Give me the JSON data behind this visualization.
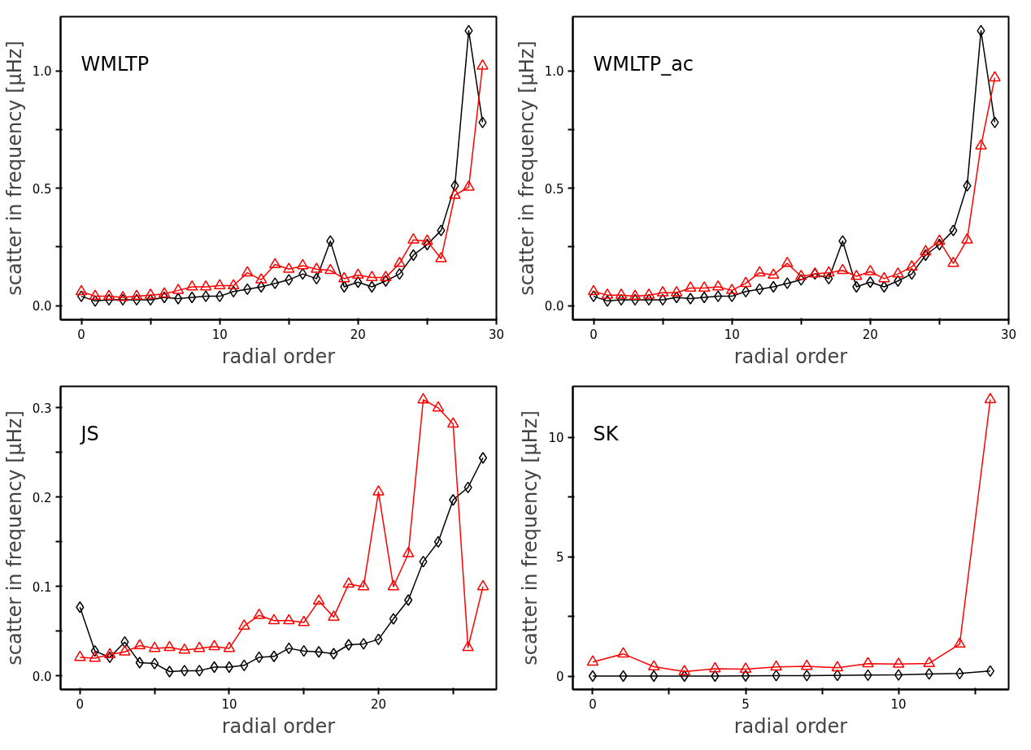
{
  "chart_data": [
    {
      "type": "line",
      "xlabel": "radial order",
      "ylabel": "scatter in frequency [μHz]",
      "annotations": [
        "WMLTP"
      ],
      "xlim": [
        -1.5,
        30
      ],
      "ylim": [
        -0.06,
        1.23
      ],
      "xticks": [
        0,
        {
          "value": 5,
          "label": null
        },
        10,
        {
          "value": 15,
          "label": null
        },
        20,
        {
          "value": 25,
          "label": null
        },
        30
      ],
      "yticks": [
        {
          "value": 0,
          "label": "0.0"
        },
        {
          "value": 0.25,
          "label": null
        },
        0.5,
        {
          "value": 0.75,
          "label": null
        },
        {
          "value": 1.0,
          "label": "1.0"
        }
      ],
      "x": [
        0,
        1,
        2,
        3,
        4,
        5,
        6,
        7,
        8,
        9,
        10,
        11,
        12,
        13,
        14,
        15,
        16,
        17,
        18,
        19,
        20,
        21,
        22,
        23,
        24,
        25,
        26,
        27,
        28,
        29
      ],
      "series": [
        {
          "color": "#000000",
          "marker": "diamond",
          "values": [
            0.04,
            0.02,
            0.025,
            0.025,
            0.025,
            0.025,
            0.035,
            0.03,
            0.035,
            0.04,
            0.04,
            0.06,
            0.07,
            0.08,
            0.095,
            0.11,
            0.135,
            0.115,
            0.275,
            0.08,
            0.1,
            0.08,
            0.105,
            0.135,
            0.215,
            0.26,
            0.32,
            0.51,
            1.17,
            0.78
          ]
        },
        {
          "color": "#ff0000",
          "marker": "triangle",
          "values": [
            0.06,
            0.04,
            0.04,
            0.035,
            0.04,
            0.045,
            0.05,
            0.065,
            0.08,
            0.08,
            0.085,
            0.085,
            0.14,
            0.11,
            0.175,
            0.155,
            0.17,
            0.155,
            0.15,
            0.115,
            0.13,
            0.12,
            0.12,
            0.18,
            0.28,
            0.275,
            0.2,
            0.47,
            0.505,
            1.02
          ]
        }
      ]
    },
    {
      "type": "line",
      "xlabel": "radial order",
      "ylabel": "scatter in frequency [μHz]",
      "annotations": [
        "WMLTP_ac"
      ],
      "xlim": [
        -1.5,
        30
      ],
      "ylim": [
        -0.06,
        1.23
      ],
      "xticks": [
        0,
        {
          "value": 5,
          "label": null
        },
        10,
        {
          "value": 15,
          "label": null
        },
        20,
        {
          "value": 25,
          "label": null
        },
        30
      ],
      "yticks": [
        {
          "value": 0,
          "label": "0.0"
        },
        {
          "value": 0.25,
          "label": null
        },
        0.5,
        {
          "value": 0.75,
          "label": null
        },
        {
          "value": 1.0,
          "label": "1.0"
        }
      ],
      "x": [
        0,
        1,
        2,
        3,
        4,
        5,
        6,
        7,
        8,
        9,
        10,
        11,
        12,
        13,
        14,
        15,
        16,
        17,
        18,
        19,
        20,
        21,
        22,
        23,
        24,
        25,
        26,
        27,
        28,
        29
      ],
      "series": [
        {
          "color": "#000000",
          "marker": "diamond",
          "values": [
            0.04,
            0.02,
            0.025,
            0.025,
            0.025,
            0.025,
            0.035,
            0.03,
            0.035,
            0.04,
            0.04,
            0.06,
            0.07,
            0.08,
            0.095,
            0.11,
            0.135,
            0.115,
            0.275,
            0.08,
            0.1,
            0.08,
            0.105,
            0.135,
            0.215,
            0.26,
            0.32,
            0.51,
            1.17,
            0.78
          ]
        },
        {
          "color": "#ff0000",
          "marker": "triangle",
          "values": [
            0.06,
            0.045,
            0.045,
            0.04,
            0.045,
            0.055,
            0.055,
            0.075,
            0.075,
            0.08,
            0.065,
            0.095,
            0.14,
            0.13,
            0.18,
            0.125,
            0.135,
            0.14,
            0.15,
            0.125,
            0.145,
            0.115,
            0.135,
            0.165,
            0.23,
            0.275,
            0.18,
            0.28,
            0.68,
            0.97
          ]
        }
      ]
    },
    {
      "type": "line",
      "xlabel": "radial order",
      "ylabel": "scatter in frequency [μHz]",
      "annotations": [
        "JS"
      ],
      "xlim": [
        -1.3,
        27.9
      ],
      "ylim": [
        -0.015,
        0.324
      ],
      "xticks": [
        0,
        {
          "value": 5,
          "label": null
        },
        10,
        {
          "value": 15,
          "label": null
        },
        20,
        {
          "value": 25,
          "label": null
        }
      ],
      "yticks": [
        {
          "value": 0,
          "label": "0.0"
        },
        {
          "value": 0.05,
          "label": null
        },
        0.1,
        {
          "value": 0.15,
          "label": null
        },
        0.2,
        {
          "value": 0.25,
          "label": null
        },
        0.3
      ],
      "x": [
        0,
        1,
        2,
        3,
        4,
        5,
        6,
        7,
        8,
        9,
        10,
        11,
        12,
        13,
        14,
        15,
        16,
        17,
        18,
        19,
        20,
        21,
        22,
        23,
        24,
        25,
        26,
        27
      ],
      "series": [
        {
          "color": "#000000",
          "marker": "diamond",
          "values": [
            0.077,
            0.028,
            0.021,
            0.038,
            0.015,
            0.014,
            0.005,
            0.006,
            0.006,
            0.01,
            0.01,
            0.012,
            0.021,
            0.022,
            0.031,
            0.028,
            0.027,
            0.025,
            0.035,
            0.036,
            0.041,
            0.064,
            0.085,
            0.128,
            0.15,
            0.197,
            0.211,
            0.244
          ]
        },
        {
          "color": "#ff0000",
          "marker": "triangle",
          "values": [
            0.021,
            0.02,
            0.024,
            0.027,
            0.034,
            0.031,
            0.032,
            0.029,
            0.031,
            0.033,
            0.031,
            0.056,
            0.068,
            0.062,
            0.062,
            0.06,
            0.084,
            0.066,
            0.103,
            0.1,
            0.206,
            0.1,
            0.137,
            0.309,
            0.3,
            0.282,
            0.032,
            0.1
          ]
        }
      ]
    },
    {
      "type": "line",
      "xlabel": "radial order",
      "ylabel": "scatter in frequency [μHz]",
      "annotations": [
        "SK"
      ],
      "xlim": [
        -0.65,
        13.6
      ],
      "ylim": [
        -0.55,
        12.13
      ],
      "xticks": [
        0,
        {
          "value": 2.5,
          "label": null
        },
        5,
        {
          "value": 7.5,
          "label": null
        },
        10,
        {
          "value": 12.5,
          "label": null
        }
      ],
      "yticks": [
        0,
        {
          "value": 2.5,
          "label": null
        },
        5,
        {
          "value": 7.5,
          "label": null
        },
        10
      ],
      "x": [
        0,
        1,
        2,
        3,
        4,
        5,
        6,
        7,
        8,
        9,
        10,
        11,
        12,
        13
      ],
      "series": [
        {
          "color": "#000000",
          "marker": "diamond",
          "values": [
            0.01,
            0.01,
            0.01,
            0.01,
            0.01,
            0.02,
            0.03,
            0.03,
            0.04,
            0.05,
            0.06,
            0.1,
            0.12,
            0.22
          ]
        },
        {
          "color": "#ff0000",
          "marker": "triangle",
          "values": [
            0.6,
            0.94,
            0.4,
            0.2,
            0.32,
            0.3,
            0.39,
            0.42,
            0.36,
            0.53,
            0.51,
            0.54,
            1.35,
            11.58
          ]
        }
      ]
    }
  ]
}
